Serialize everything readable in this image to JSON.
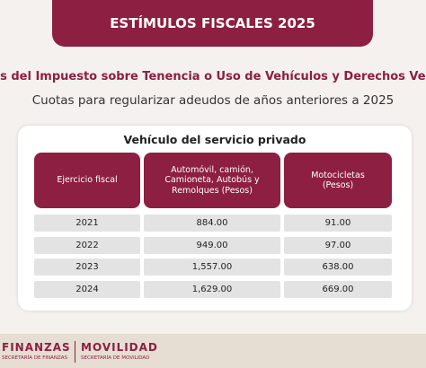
{
  "header": {
    "title": "ESTÍMULOS FISCALES 2025"
  },
  "heading": "os del Impuesto sobre Tenencia o Uso de Vehículos y Derechos Veh",
  "subheading": "Cuotas para regularizar adeudos de años anteriores a 2025",
  "table": {
    "title": "Vehículo del servicio privado",
    "headers": [
      "Ejercicio fiscal",
      "Automóvil, camión, Camioneta, Autobús y Remolques (Pesos)",
      "Motocicletas (Pesos)"
    ],
    "rows": [
      [
        "2021",
        "884.00",
        "91.00"
      ],
      [
        "2022",
        "949.00",
        "97.00"
      ],
      [
        "2023",
        "1,557.00",
        "638.00"
      ],
      [
        "2024",
        "1,629.00",
        "669.00"
      ]
    ]
  },
  "footer": {
    "left_title": "FINANZAS",
    "left_subtitle": "SECRETARÍA DE FINANZAS",
    "right_title": "MOVILIDAD",
    "right_subtitle": "SECRETARÍA DE MOVILIDAD"
  }
}
